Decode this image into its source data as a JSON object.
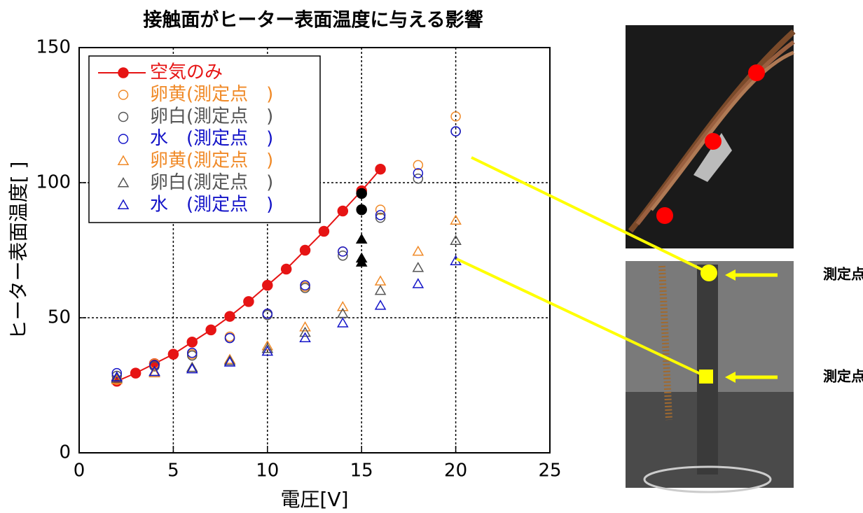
{
  "chart_data": {
    "type": "scatter",
    "title": "接触面がヒーター表面温度に与える影響",
    "x_label": "電圧[V]",
    "y_label": "ヒーター表面温度[ ]",
    "xlim": [
      0,
      25
    ],
    "xticks": [
      0,
      5,
      10,
      15,
      20,
      25
    ],
    "ylim": [
      0,
      150
    ],
    "yticks": [
      0,
      50,
      100,
      150
    ],
    "grid": true,
    "legend": "upper left",
    "series": [
      {
        "name": "空気のみ",
        "color": "#e61414",
        "marker": "circle",
        "filled": true,
        "line": true,
        "x": [
          2,
          3,
          4,
          5,
          6,
          7,
          8,
          9,
          10,
          11,
          12,
          13,
          14,
          15,
          16
        ],
        "values": [
          26.5,
          29.5,
          33,
          36.5,
          41,
          45.5,
          50.5,
          56,
          62,
          68,
          75,
          82,
          89.5,
          97,
          105
        ]
      },
      {
        "name": "卵黄(測定点　)",
        "color": "#f08a28",
        "marker": "circle",
        "filled": false,
        "line": false,
        "x": [
          2,
          4,
          6,
          8,
          10,
          12,
          14,
          16,
          18,
          20
        ],
        "values": [
          27,
          33,
          36.5,
          43,
          51.5,
          61.5,
          74.5,
          90,
          106.5,
          124.5
        ]
      },
      {
        "name": "卵白(測定点　)",
        "color": "#555555",
        "marker": "circle",
        "filled": false,
        "line": false,
        "x": [
          2,
          4,
          6,
          8,
          10,
          12,
          14,
          16,
          18,
          20
        ],
        "values": [
          28.5,
          32,
          36,
          42.5,
          51,
          61,
          73,
          87,
          101.5,
          119
        ]
      },
      {
        "name": "水　(測定点　)",
        "color": "#1414c8",
        "marker": "circle",
        "filled": false,
        "line": false,
        "x": [
          2,
          4,
          6,
          8,
          10,
          12,
          14,
          16,
          18,
          20
        ],
        "values": [
          29.5,
          32.5,
          37,
          42.5,
          51.5,
          62,
          74.5,
          88,
          103.5,
          119
        ]
      },
      {
        "name": "卵黄(測定点　)",
        "color": "#f08a28",
        "marker": "triangle",
        "filled": false,
        "line": false,
        "x": [
          2,
          4,
          6,
          8,
          10,
          12,
          14,
          16,
          18,
          20
        ],
        "values": [
          27,
          29.5,
          31.5,
          34.5,
          39.5,
          46.5,
          54,
          63.5,
          74.5,
          86
        ]
      },
      {
        "name": "卵白(測定点　)",
        "color": "#555555",
        "marker": "triangle",
        "filled": false,
        "line": false,
        "x": [
          2,
          4,
          6,
          8,
          10,
          12,
          14,
          16,
          18,
          20
        ],
        "values": [
          27.5,
          30,
          31.5,
          34,
          38.5,
          44.5,
          51.5,
          60,
          68.5,
          78.5
        ]
      },
      {
        "name": "水　(測定点　)",
        "color": "#1414c8",
        "marker": "triangle",
        "filled": false,
        "line": false,
        "x": [
          2,
          4,
          6,
          8,
          10,
          12,
          14,
          16,
          18,
          20
        ],
        "values": [
          28,
          30,
          31,
          33.5,
          37.5,
          42.5,
          48,
          54.5,
          62.5,
          71
        ]
      },
      {
        "color": "#000000",
        "marker": "circle",
        "filled": true,
        "line": false,
        "x": [
          15,
          15
        ],
        "values": [
          96,
          90
        ]
      },
      {
        "color": "#000000",
        "marker": "triangle",
        "filled": true,
        "line": false,
        "x": [
          15,
          15,
          15
        ],
        "values": [
          79,
          72,
          70.5
        ]
      }
    ]
  },
  "photo_labels": [
    "測定点",
    "測定点"
  ]
}
